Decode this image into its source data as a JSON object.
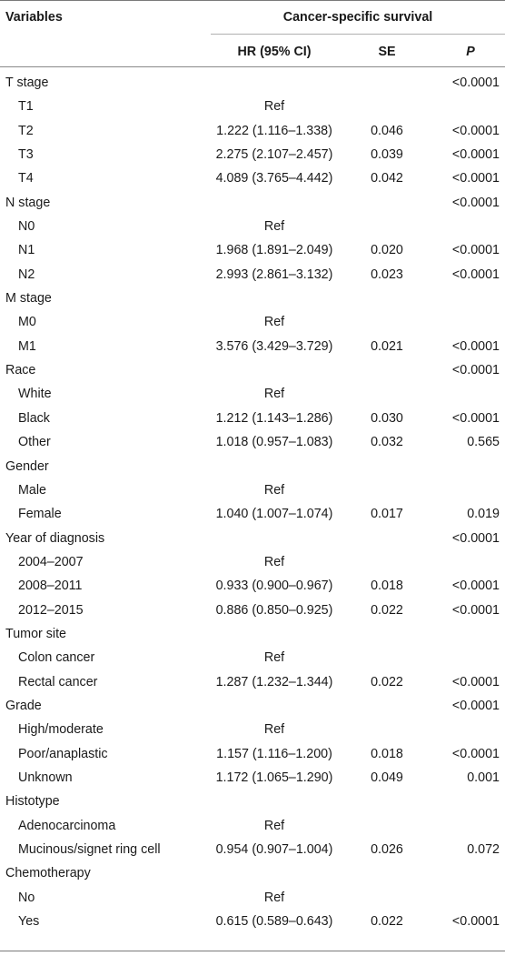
{
  "header": {
    "variables": "Variables",
    "group": "Cancer-specific survival",
    "hr": "HR (95% CI)",
    "se": "SE",
    "p": "P"
  },
  "rows": [
    {
      "label": "T stage",
      "hr": "",
      "se": "",
      "p": "<0.0001",
      "level": false
    },
    {
      "label": "T1",
      "hr": "Ref",
      "se": "",
      "p": "",
      "level": true
    },
    {
      "label": "T2",
      "hr": "1.222 (1.116–1.338)",
      "se": "0.046",
      "p": "<0.0001",
      "level": true
    },
    {
      "label": "T3",
      "hr": "2.275 (2.107–2.457)",
      "se": "0.039",
      "p": "<0.0001",
      "level": true
    },
    {
      "label": "T4",
      "hr": "4.089 (3.765–4.442)",
      "se": "0.042",
      "p": "<0.0001",
      "level": true
    },
    {
      "label": "N stage",
      "hr": "",
      "se": "",
      "p": "<0.0001",
      "level": false
    },
    {
      "label": "N0",
      "hr": "Ref",
      "se": "",
      "p": "",
      "level": true
    },
    {
      "label": "N1",
      "hr": "1.968 (1.891–2.049)",
      "se": "0.020",
      "p": "<0.0001",
      "level": true
    },
    {
      "label": "N2",
      "hr": "2.993 (2.861–3.132)",
      "se": "0.023",
      "p": "<0.0001",
      "level": true
    },
    {
      "label": "M stage",
      "hr": "",
      "se": "",
      "p": "",
      "level": false
    },
    {
      "label": "M0",
      "hr": "Ref",
      "se": "",
      "p": "",
      "level": true
    },
    {
      "label": "M1",
      "hr": "3.576 (3.429–3.729)",
      "se": "0.021",
      "p": "<0.0001",
      "level": true
    },
    {
      "label": "Race",
      "hr": "",
      "se": "",
      "p": "<0.0001",
      "level": false
    },
    {
      "label": "White",
      "hr": "Ref",
      "se": "",
      "p": "",
      "level": true
    },
    {
      "label": "Black",
      "hr": "1.212 (1.143–1.286)",
      "se": "0.030",
      "p": "<0.0001",
      "level": true
    },
    {
      "label": "Other",
      "hr": "1.018 (0.957–1.083)",
      "se": "0.032",
      "p": "0.565",
      "level": true
    },
    {
      "label": "Gender",
      "hr": "",
      "se": "",
      "p": "",
      "level": false
    },
    {
      "label": "Male",
      "hr": "Ref",
      "se": "",
      "p": "",
      "level": true
    },
    {
      "label": "Female",
      "hr": "1.040 (1.007–1.074)",
      "se": "0.017",
      "p": "0.019",
      "level": true
    },
    {
      "label": "Year of diagnosis",
      "hr": "",
      "se": "",
      "p": "<0.0001",
      "level": false
    },
    {
      "label": "2004–2007",
      "hr": "Ref",
      "se": "",
      "p": "",
      "level": true
    },
    {
      "label": "2008–2011",
      "hr": "0.933 (0.900–0.967)",
      "se": "0.018",
      "p": "<0.0001",
      "level": true
    },
    {
      "label": "2012–2015",
      "hr": "0.886 (0.850–0.925)",
      "se": "0.022",
      "p": "<0.0001",
      "level": true
    },
    {
      "label": "Tumor site",
      "hr": "",
      "se": "",
      "p": "",
      "level": false
    },
    {
      "label": "Colon cancer",
      "hr": "Ref",
      "se": "",
      "p": "",
      "level": true
    },
    {
      "label": "Rectal cancer",
      "hr": "1.287 (1.232–1.344)",
      "se": "0.022",
      "p": "<0.0001",
      "level": true
    },
    {
      "label": "Grade",
      "hr": "",
      "se": "",
      "p": "<0.0001",
      "level": false
    },
    {
      "label": "High/moderate",
      "hr": "Ref",
      "se": "",
      "p": "",
      "level": true
    },
    {
      "label": "Poor/anaplastic",
      "hr": "1.157 (1.116–1.200)",
      "se": "0.018",
      "p": "<0.0001",
      "level": true
    },
    {
      "label": "Unknown",
      "hr": "1.172 (1.065–1.290)",
      "se": "0.049",
      "p": "0.001",
      "level": true
    },
    {
      "label": "Histotype",
      "hr": "",
      "se": "",
      "p": "",
      "level": false
    },
    {
      "label": "Adenocarcinoma",
      "hr": "Ref",
      "se": "",
      "p": "",
      "level": true
    },
    {
      "label": "Mucinous/signet ring cell",
      "hr": "0.954 (0.907–1.004)",
      "se": "0.026",
      "p": "0.072",
      "level": true
    },
    {
      "label": "Chemotherapy",
      "hr": "",
      "se": "",
      "p": "",
      "level": false
    },
    {
      "label": "No",
      "hr": "Ref",
      "se": "",
      "p": "",
      "level": true
    },
    {
      "label": "Yes",
      "hr": "0.615 (0.589–0.643)",
      "se": "0.022",
      "p": "<0.0001",
      "level": true
    }
  ]
}
